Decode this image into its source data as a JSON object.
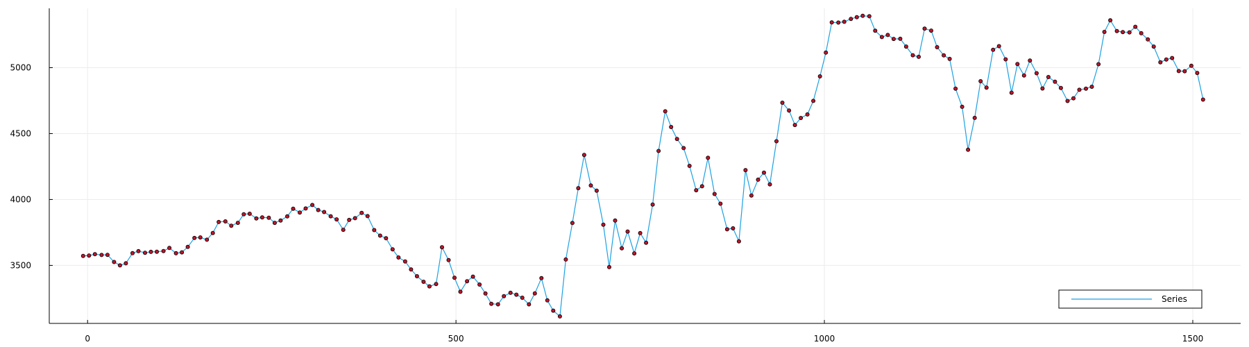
{
  "chart_data": {
    "type": "line",
    "title": "",
    "xlabel": "",
    "ylabel": "",
    "xlim": [
      -52,
      1565
    ],
    "ylim": [
      3060,
      5450
    ],
    "xticks": [
      0,
      500,
      1000,
      1500
    ],
    "yticks": [
      3500,
      4000,
      4500,
      5000
    ],
    "grid": true,
    "legend": {
      "position": "bottom-right",
      "entries": [
        "Series"
      ]
    },
    "colors": {
      "line": "#1ba1e2",
      "marker_fill": "#c0142a",
      "marker_stroke": "#000000",
      "grid": "#ececec",
      "axis": "#000000"
    },
    "series": [
      {
        "name": "Series",
        "x": [
          -6,
          2,
          10,
          19,
          27,
          36,
          44,
          52,
          61,
          69,
          78,
          86,
          94,
          103,
          111,
          120,
          128,
          136,
          145,
          153,
          162,
          170,
          178,
          187,
          195,
          204,
          212,
          220,
          229,
          237,
          246,
          254,
          262,
          271,
          279,
          288,
          296,
          305,
          313,
          321,
          330,
          338,
          347,
          355,
          363,
          372,
          380,
          389,
          397,
          405,
          414,
          422,
          431,
          439,
          447,
          456,
          464,
          473,
          481,
          490,
          498,
          506,
          515,
          523,
          532,
          540,
          548,
          557,
          565,
          574,
          582,
          590,
          599,
          607,
          616,
          624,
          632,
          641,
          649,
          658,
          666,
          674,
          683,
          691,
          700,
          708,
          716,
          725,
          733,
          742,
          750,
          758,
          767,
          775,
          784,
          792,
          800,
          809,
          817,
          826,
          834,
          842,
          851,
          859,
          868,
          876,
          884,
          893,
          901,
          910,
          918,
          926,
          935,
          943,
          952,
          960,
          968,
          977,
          985,
          994,
          1002,
          1010,
          1019,
          1027,
          1036,
          1044,
          1052,
          1061,
          1069,
          1078,
          1086,
          1094,
          1103,
          1111,
          1120,
          1128,
          1136,
          1145,
          1153,
          1162,
          1170,
          1178,
          1187,
          1195,
          1204,
          1212,
          1220,
          1229,
          1237,
          1246,
          1254,
          1262,
          1271,
          1279,
          1288,
          1296,
          1304,
          1313,
          1321,
          1330,
          1338,
          1346,
          1355,
          1363,
          1372,
          1380,
          1388,
          1397,
          1405,
          1414,
          1422,
          1430,
          1439,
          1447,
          1456,
          1464,
          1472,
          1481,
          1489,
          1498,
          1506,
          1514
        ],
        "values": [
          3572,
          3575,
          3585,
          3579,
          3580,
          3526,
          3500,
          3516,
          3593,
          3608,
          3596,
          3603,
          3604,
          3609,
          3632,
          3592,
          3599,
          3640,
          3708,
          3712,
          3695,
          3746,
          3829,
          3834,
          3801,
          3823,
          3888,
          3892,
          3856,
          3864,
          3862,
          3823,
          3840,
          3872,
          3930,
          3901,
          3932,
          3958,
          3920,
          3905,
          3873,
          3849,
          3770,
          3845,
          3858,
          3898,
          3874,
          3768,
          3726,
          3706,
          3622,
          3560,
          3530,
          3469,
          3418,
          3376,
          3341,
          3359,
          3638,
          3540,
          3406,
          3300,
          3380,
          3415,
          3355,
          3287,
          3209,
          3205,
          3267,
          3292,
          3278,
          3255,
          3205,
          3288,
          3403,
          3235,
          3157,
          3113,
          3545,
          3822,
          4086,
          4338,
          4106,
          4067,
          3809,
          3487,
          3840,
          3630,
          3757,
          3591,
          3745,
          3672,
          3962,
          4368,
          4669,
          4550,
          4459,
          4390,
          4255,
          4070,
          4100,
          4316,
          4042,
          3968,
          3774,
          3781,
          3683,
          4223,
          4030,
          4150,
          4204,
          4115,
          4442,
          4734,
          4675,
          4565,
          4618,
          4645,
          4748,
          4934,
          5114,
          5343,
          5342,
          5348,
          5370,
          5383,
          5393,
          5390,
          5280,
          5232,
          5248,
          5218,
          5219,
          5160,
          5094,
          5082,
          5296,
          5281,
          5155,
          5093,
          5066,
          4841,
          4703,
          4377,
          4619,
          4897,
          4849,
          5135,
          5163,
          5063,
          4810,
          5028,
          4941,
          5054,
          4958,
          4842,
          4929,
          4893,
          4846,
          4747,
          4768,
          4832,
          4841,
          4855,
          5026,
          5271,
          5359,
          5278,
          5270,
          5268,
          5310,
          5261,
          5214,
          5160,
          5041,
          5062,
          5073,
          4974,
          4973,
          5014,
          4960,
          4758
        ]
      }
    ]
  }
}
